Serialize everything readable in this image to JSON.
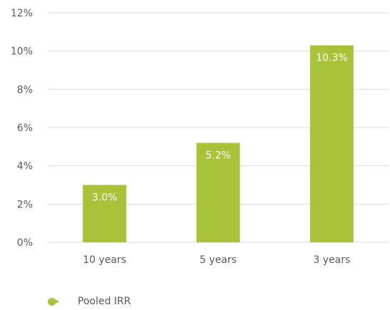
{
  "colors": {
    "bar": "#a8c23a",
    "grid": "#d9d9d9",
    "text": "#595959",
    "data_label": "#ffffff"
  },
  "chart_data": {
    "type": "bar",
    "categories": [
      "10 years",
      "5 years",
      "3 years"
    ],
    "series": [
      {
        "name": "Pooled IRR",
        "values": [
          3.0,
          5.2,
          10.3
        ],
        "data_labels": [
          "3.0%",
          "5.2%",
          "10.3%"
        ]
      }
    ],
    "y_ticks": [
      "0%",
      "2%",
      "4%",
      "6%",
      "8%",
      "10%",
      "12%"
    ],
    "ylim": [
      0,
      12
    ],
    "grid": true,
    "legend_position": "bottom-left"
  }
}
